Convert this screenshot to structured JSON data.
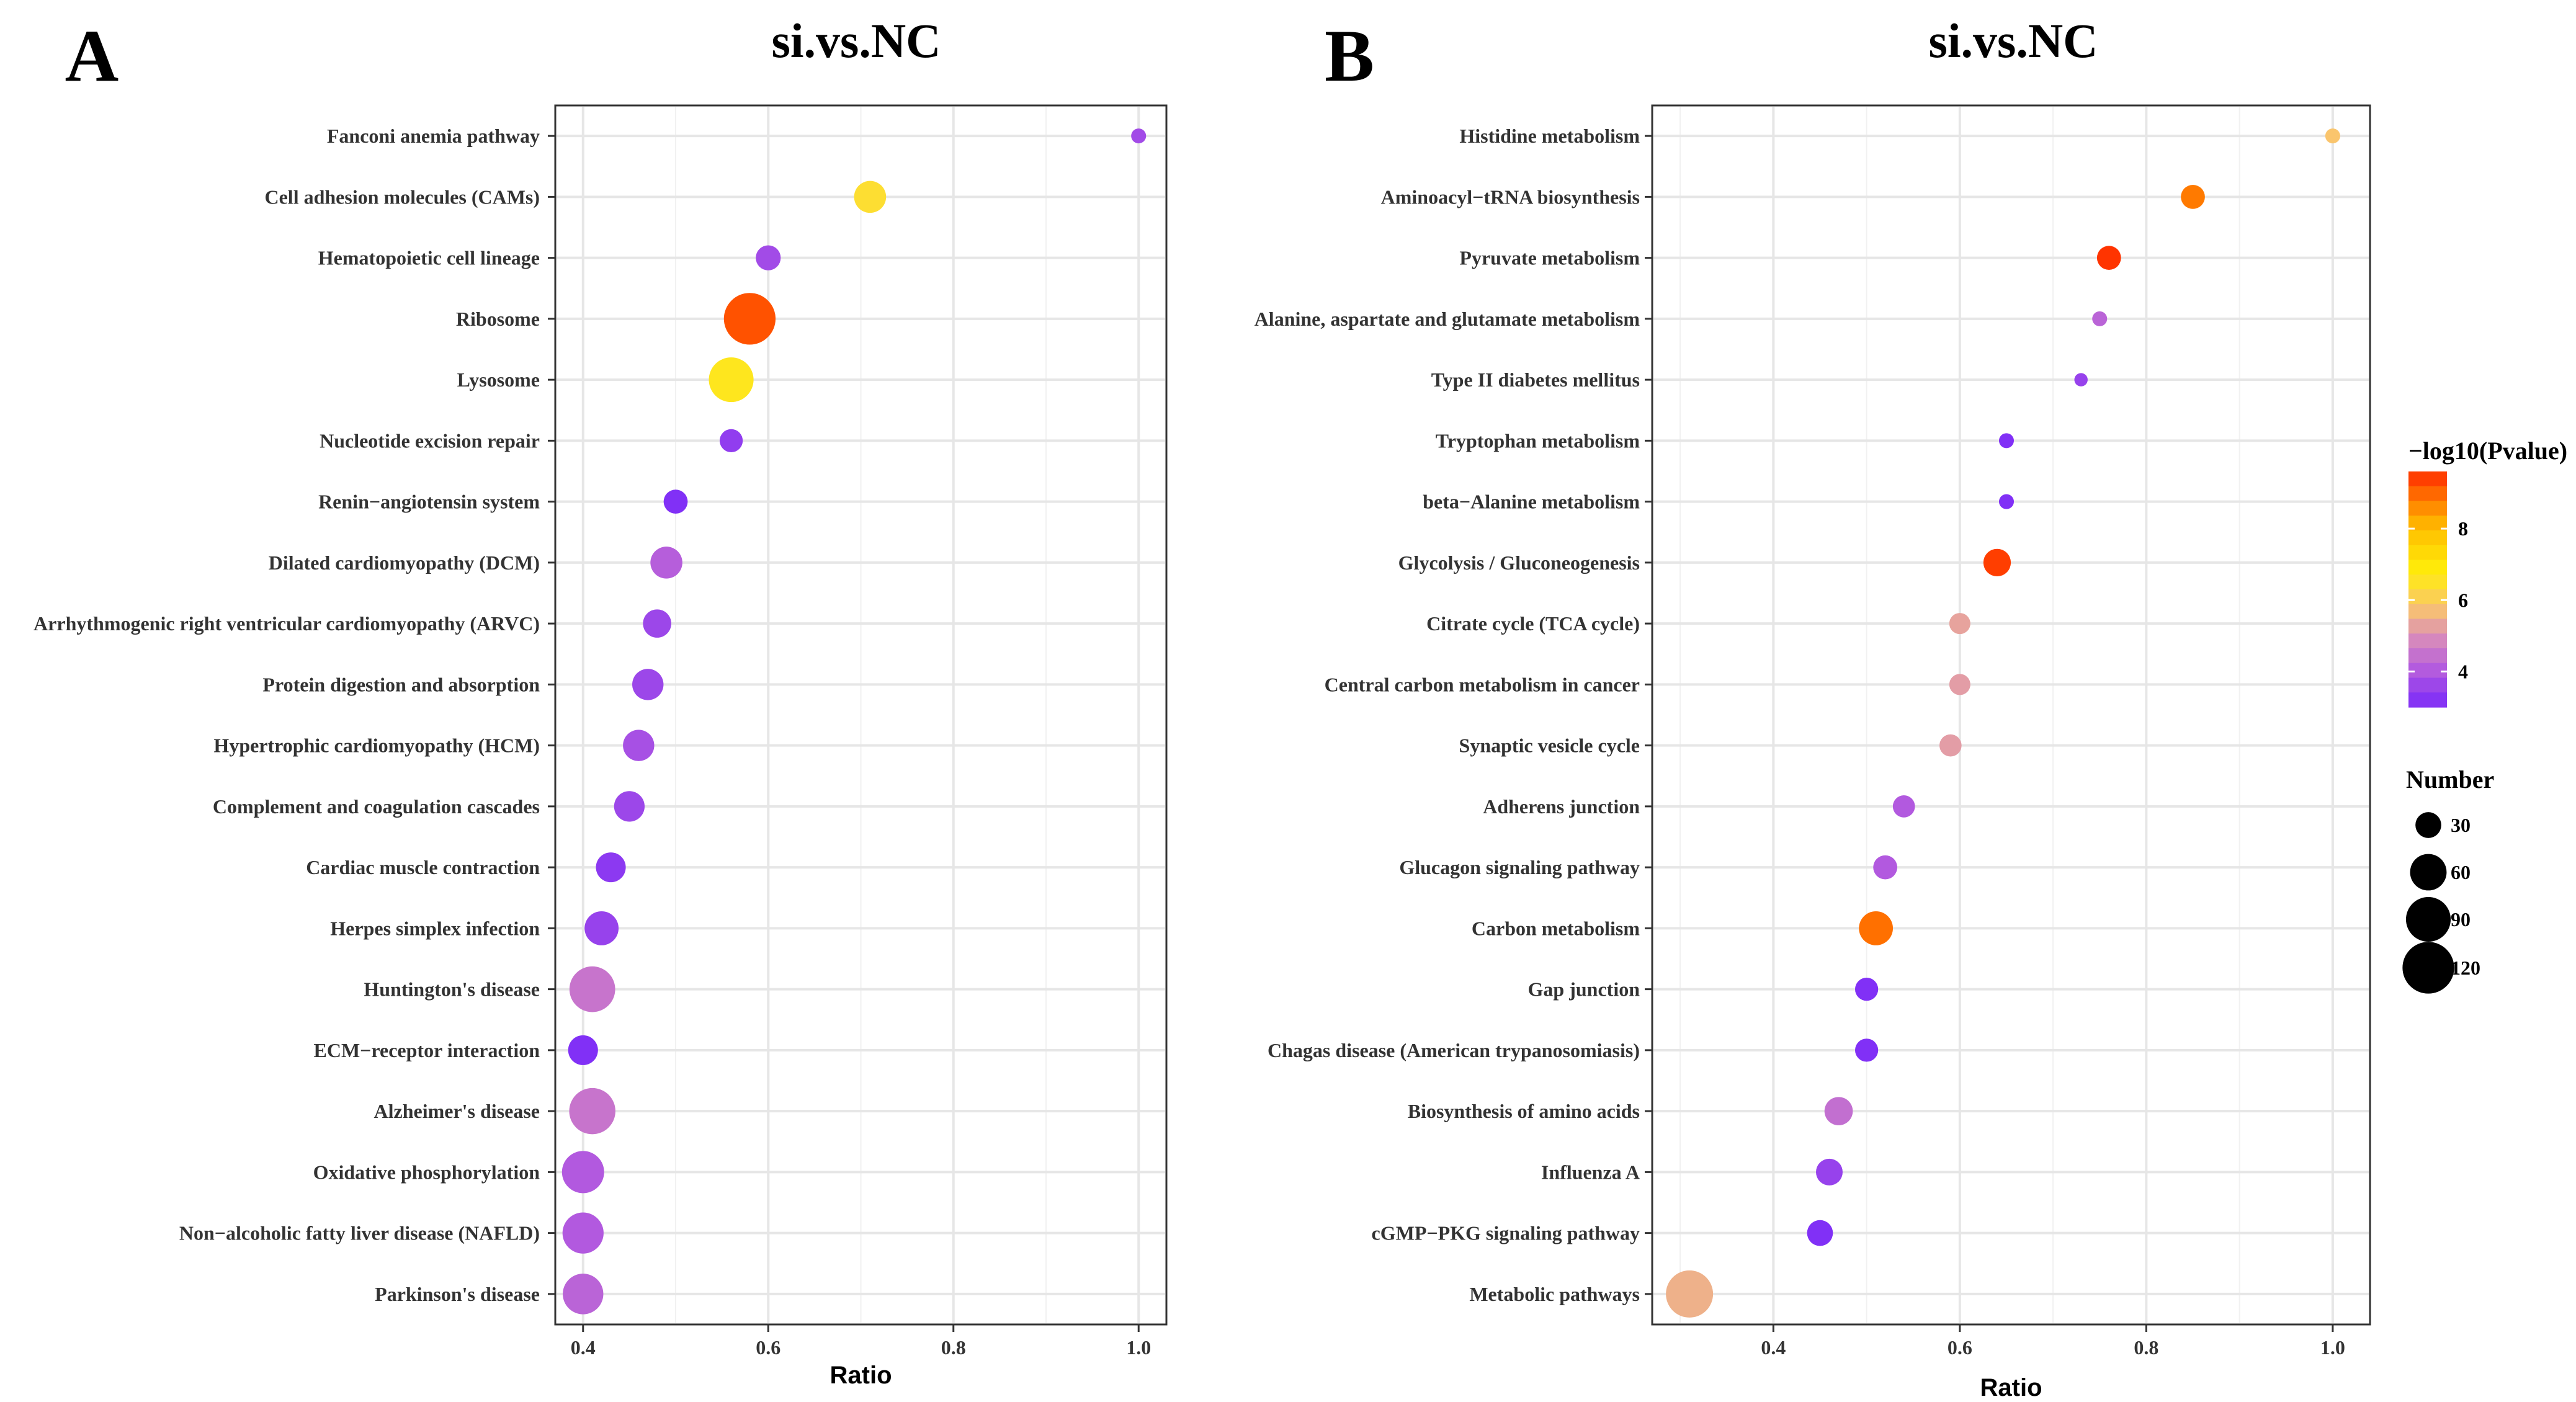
{
  "chart_data": [
    {
      "panel": "A",
      "type": "scatter",
      "title": "si.vs.NC",
      "xlabel": "Ratio",
      "ylabel": "",
      "xlim": [
        0.37,
        1.03
      ],
      "x_ticks": [
        0.4,
        0.6,
        0.8,
        1.0
      ],
      "x_tick_labels": [
        "0.4",
        "0.6",
        "0.8",
        "1.0"
      ],
      "categories": [
        "Fanconi anemia pathway",
        "Cell adhesion molecules (CAMs)",
        "Hematopoietic cell lineage",
        "Ribosome",
        "Lysosome",
        "Nucleotide excision repair",
        "Renin−angiotensin system",
        "Dilated cardiomyopathy (DCM)",
        "Arrhythmogenic right ventricular cardiomyopathy (ARVC)",
        "Protein digestion and absorption",
        "Hypertrophic cardiomyopathy (HCM)",
        "Complement and coagulation cascades",
        "Cardiac muscle contraction",
        "Herpes simplex infection",
        "Huntington's disease",
        "ECM−receptor interaction",
        "Alzheimer's disease",
        "Oxidative phosphorylation",
        "Non−alcoholic fatty liver disease (NAFLD)",
        "Parkinson's disease"
      ],
      "ratio": [
        1.0,
        0.71,
        0.6,
        0.58,
        0.56,
        0.56,
        0.5,
        0.49,
        0.48,
        0.47,
        0.46,
        0.45,
        0.43,
        0.42,
        0.41,
        0.4,
        0.41,
        0.4,
        0.4,
        0.4
      ],
      "number": [
        10,
        46,
        28,
        120,
        90,
        24,
        26,
        46,
        36,
        44,
        44,
        42,
        40,
        52,
        94,
        40,
        96,
        80,
        76,
        74
      ],
      "neg_log10_pvalue": [
        3.7,
        6.4,
        3.7,
        9.2,
        6.6,
        3.4,
        3.1,
        4.1,
        3.6,
        3.6,
        3.8,
        3.6,
        3.3,
        3.5,
        4.5,
        3.1,
        4.5,
        4.0,
        4.0,
        4.2
      ]
    },
    {
      "panel": "B",
      "type": "scatter",
      "title": "si.vs.NC",
      "xlabel": "Ratio",
      "ylabel": "",
      "xlim": [
        0.27,
        1.04
      ],
      "x_ticks": [
        0.4,
        0.6,
        0.8,
        1.0
      ],
      "x_tick_labels": [
        "0.4",
        "0.6",
        "0.8",
        "1.0"
      ],
      "categories": [
        "Histidine metabolism",
        "Aminoacyl−tRNA biosynthesis",
        "Pyruvate metabolism",
        "Alanine, aspartate and glutamate metabolism",
        "Type II diabetes mellitus",
        "Tryptophan metabolism",
        "beta−Alanine metabolism",
        "Glycolysis / Gluconeogenesis",
        "Citrate cycle (TCA cycle)",
        "Central carbon metabolism in cancer",
        "Synaptic vesicle cycle",
        "Adherens junction",
        "Glucagon signaling pathway",
        "Carbon metabolism",
        "Gap junction",
        "Chagas disease (American trypanosomiasis)",
        "Biosynthesis of amino acids",
        "Influenza A",
        "cGMP−PKG signaling pathway",
        "Metabolic pathways"
      ],
      "ratio": [
        1.0,
        0.85,
        0.76,
        0.75,
        0.73,
        0.65,
        0.65,
        0.64,
        0.6,
        0.6,
        0.59,
        0.54,
        0.52,
        0.51,
        0.5,
        0.5,
        0.47,
        0.46,
        0.45,
        0.31
      ],
      "number": [
        10,
        26,
        26,
        10,
        8,
        10,
        10,
        34,
        20,
        20,
        22,
        22,
        26,
        52,
        24,
        24,
        36,
        32,
        30,
        100
      ],
      "neg_log10_pvalue": [
        5.8,
        8.8,
        9.5,
        4.2,
        3.5,
        3.1,
        3.1,
        9.4,
        5.3,
        5.2,
        5.2,
        4.0,
        4.0,
        8.9,
        3.1,
        3.1,
        4.4,
        3.5,
        3.1,
        5.5
      ]
    }
  ],
  "legend": {
    "color_title": "−log10(Pvalue)",
    "color_min": 3.0,
    "color_max": 9.6,
    "color_ticks": [
      4,
      6,
      8
    ],
    "color_tick_labels": [
      "4",
      "6",
      "8"
    ],
    "color_stops": [
      {
        "value": 3.0,
        "color": "#7b2bf9"
      },
      {
        "value": 4.0,
        "color": "#b259df"
      },
      {
        "value": 5.0,
        "color": "#db8fb9"
      },
      {
        "value": 5.8,
        "color": "#fac56d"
      },
      {
        "value": 6.8,
        "color": "#ffee0a"
      },
      {
        "value": 8.0,
        "color": "#ffbe00"
      },
      {
        "value": 8.8,
        "color": "#ff7a00"
      },
      {
        "value": 9.6,
        "color": "#ff2a00"
      }
    ],
    "size_title": "Number",
    "size_values": [
      30,
      60,
      90,
      120
    ],
    "size_labels": [
      "30",
      "60",
      "90",
      "120"
    ]
  }
}
